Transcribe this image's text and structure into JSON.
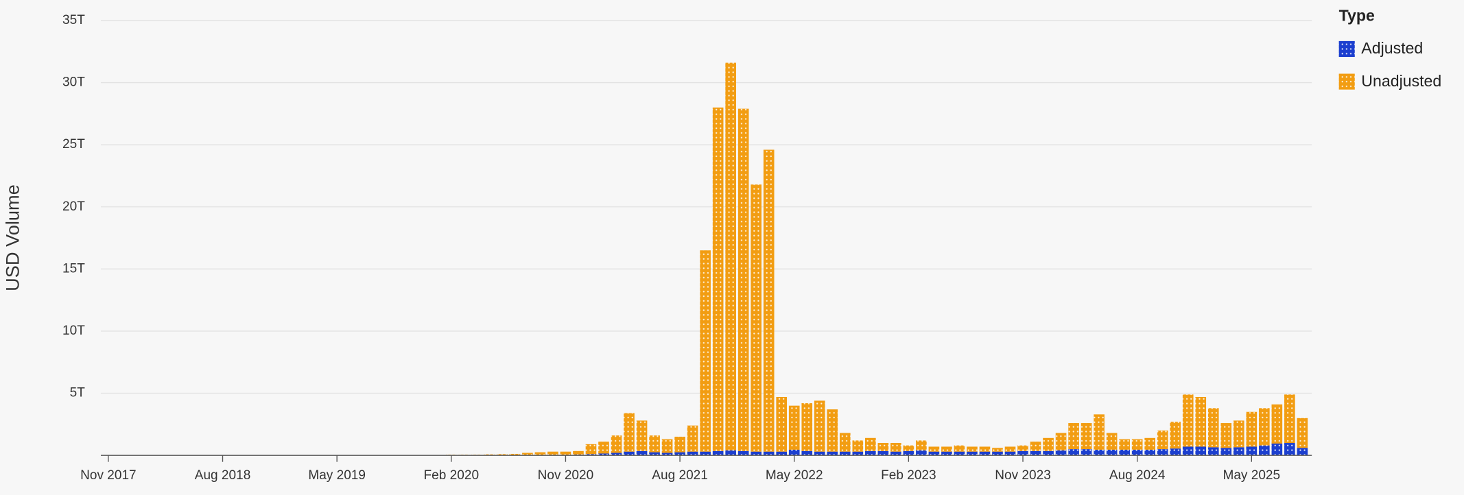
{
  "chart_data": {
    "type": "stacked-bar",
    "ylabel": "USD Volume",
    "legend_title": "Type",
    "legend": "right",
    "grid": true,
    "categories": [
      "Nov 2017",
      null,
      null,
      null,
      null,
      null,
      null,
      null,
      null,
      "Aug 2018",
      null,
      null,
      null,
      null,
      null,
      null,
      null,
      null,
      "May 2019",
      null,
      null,
      null,
      null,
      null,
      null,
      null,
      null,
      "Feb 2020",
      null,
      null,
      null,
      null,
      null,
      null,
      null,
      null,
      "Nov 2020",
      null,
      null,
      null,
      null,
      null,
      null,
      null,
      null,
      "Aug 2021",
      null,
      null,
      null,
      null,
      null,
      null,
      null,
      null,
      "May 2022",
      null,
      null,
      null,
      null,
      null,
      null,
      null,
      null,
      "Feb 2023",
      null,
      null,
      null,
      null,
      null,
      null,
      null,
      null,
      "Nov 2023",
      null,
      null,
      null,
      null,
      null,
      null,
      null,
      null,
      "Aug 2024",
      null,
      null,
      null,
      null,
      null,
      null,
      null,
      null,
      "May 2025",
      null,
      null,
      null,
      null
    ],
    "series": [
      {
        "name": "Adjusted",
        "color": "#1c3fcf",
        "values": [
          0,
          0,
          0,
          0,
          0,
          0,
          0,
          0,
          0,
          0,
          0,
          0,
          0,
          0,
          0,
          0,
          0,
          0,
          0,
          0,
          0,
          0,
          0,
          0,
          0,
          0,
          0,
          0.01,
          0.01,
          0.01,
          0.01,
          0.02,
          0.02,
          0.03,
          0.04,
          0.05,
          0.05,
          0.06,
          0.1,
          0.15,
          0.2,
          0.3,
          0.35,
          0.25,
          0.2,
          0.25,
          0.3,
          0.3,
          0.35,
          0.4,
          0.35,
          0.3,
          0.3,
          0.3,
          0.45,
          0.35,
          0.3,
          0.3,
          0.3,
          0.3,
          0.35,
          0.35,
          0.3,
          0.35,
          0.4,
          0.3,
          0.3,
          0.3,
          0.3,
          0.3,
          0.3,
          0.3,
          0.35,
          0.35,
          0.35,
          0.4,
          0.5,
          0.5,
          0.45,
          0.45,
          0.45,
          0.45,
          0.45,
          0.5,
          0.55,
          0.7,
          0.7,
          0.65,
          0.6,
          0.65,
          0.7,
          0.8,
          0.95,
          1.0,
          0.6
        ]
      },
      {
        "name": "Unadjusted",
        "color": "#f29d12",
        "values": [
          0.01,
          0.01,
          0.01,
          0.01,
          0.01,
          0.01,
          0.01,
          0.01,
          0.01,
          0.01,
          0.01,
          0.01,
          0.01,
          0.01,
          0.01,
          0.01,
          0.01,
          0.01,
          0.01,
          0.01,
          0.02,
          0.02,
          0.02,
          0.02,
          0.02,
          0.02,
          0.02,
          0.04,
          0.04,
          0.04,
          0.07,
          0.08,
          0.1,
          0.17,
          0.21,
          0.25,
          0.25,
          0.29,
          0.8,
          0.95,
          1.4,
          3.1,
          2.45,
          1.35,
          1.1,
          1.25,
          2.1,
          16.2,
          27.65,
          31.2,
          27.55,
          21.5,
          24.3,
          4.4,
          3.55,
          3.85,
          4.1,
          3.4,
          1.5,
          0.9,
          1.05,
          0.65,
          0.7,
          0.45,
          0.8,
          0.4,
          0.4,
          0.5,
          0.4,
          0.4,
          0.3,
          0.4,
          0.45,
          0.75,
          1.05,
          1.4,
          2.1,
          2.1,
          2.85,
          1.35,
          0.85,
          0.85,
          0.95,
          1.5,
          2.15,
          4.2,
          4.0,
          3.15,
          2.0,
          2.15,
          2.8,
          3.0,
          3.15,
          3.9,
          2.4
        ]
      }
    ],
    "ylim": [
      0,
      35
    ],
    "yticks": [
      {
        "value": 5,
        "label": "5T"
      },
      {
        "value": 10,
        "label": "10T"
      },
      {
        "value": 15,
        "label": "15T"
      },
      {
        "value": 20,
        "label": "20T"
      },
      {
        "value": 25,
        "label": "25T"
      },
      {
        "value": 30,
        "label": "30T"
      },
      {
        "value": 35,
        "label": "35T"
      }
    ]
  }
}
